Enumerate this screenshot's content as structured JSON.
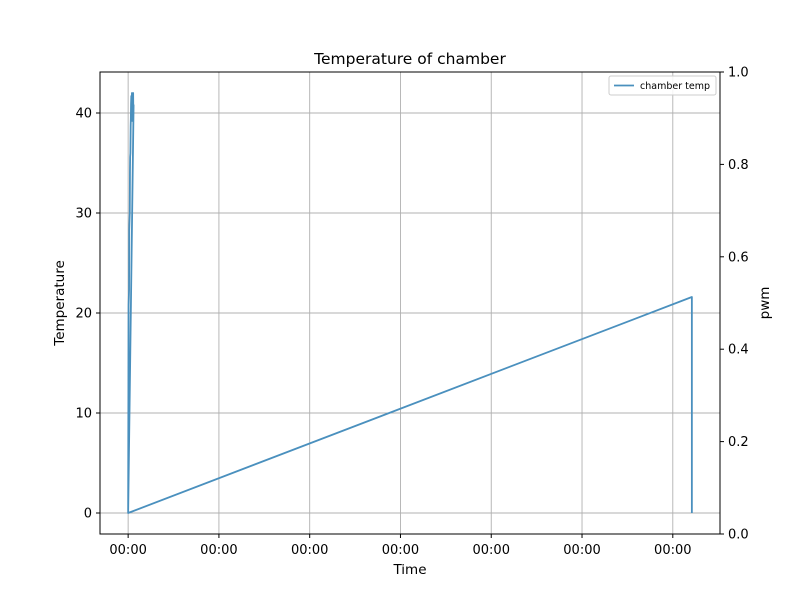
{
  "chart_data": {
    "type": "line",
    "title": "Temperature of chamber",
    "xlabel": "Time",
    "ylabel": "Temperature",
    "y2label": "pwm",
    "x_tick_labels": [
      "00:00",
      "00:00",
      "00:00",
      "00:00",
      "00:00",
      "00:00",
      "00:00"
    ],
    "x_tick_positions": [
      0,
      1,
      2,
      3,
      4,
      5,
      6
    ],
    "xlim": [
      -0.31,
      6.52
    ],
    "ylim": [
      -2.1,
      44.1
    ],
    "y_ticks": [
      0,
      10,
      20,
      30,
      40
    ],
    "y2lim": [
      0.0,
      1.0
    ],
    "y2_ticks": [
      0.0,
      0.2,
      0.4,
      0.6,
      0.8,
      1.0
    ],
    "y2_tick_labels": [
      "0.0",
      "0.2",
      "0.4",
      "0.6",
      "0.8",
      "1.0"
    ],
    "grid": true,
    "legend_position": "top-right",
    "colors": {
      "series": "#4a90be",
      "grid": "#b0b0b0",
      "axis": "#000000"
    },
    "series": [
      {
        "name": "chamber temp",
        "axis": "left",
        "x": [
          0.0,
          0.005,
          0.01,
          0.012,
          0.015,
          0.018,
          0.02,
          0.022,
          0.025,
          0.028,
          0.03,
          0.032,
          0.035,
          0.037,
          0.04,
          0.042,
          0.045,
          0.048,
          0.05,
          0.052,
          0.055,
          0.057,
          0.06,
          0.0,
          6.21,
          6.21
        ],
        "y": [
          0.0,
          20.8,
          22.3,
          28.3,
          29.2,
          30.0,
          34.2,
          35.6,
          36.0,
          38.7,
          39.5,
          40.9,
          41.7,
          39.2,
          40.8,
          42.0,
          41.3,
          39.2,
          40.1,
          41.5,
          42.0,
          40.2,
          40.8,
          0.0,
          21.6,
          0.0
        ]
      }
    ]
  }
}
